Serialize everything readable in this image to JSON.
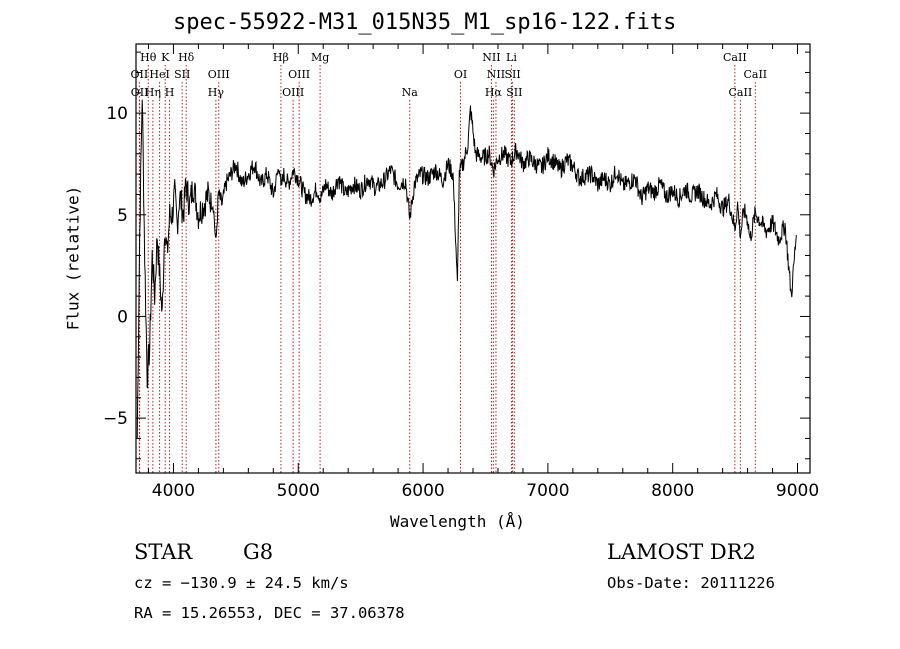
{
  "header": {
    "title": "spec-55922-M31_015N35_M1_sp16-122.fits"
  },
  "footer": {
    "class_label": "STAR",
    "subclass_label": "G8",
    "survey_label": "LAMOST DR2",
    "cz_text": "cz = −130.9 ± 24.5 km/s",
    "obs_date_text": "Obs-Date: 20111226",
    "coords_text": "RA =  15.26553, DEC =  37.06378"
  },
  "chart_data": {
    "type": "line",
    "title": "spec-55922-M31_015N35_M1_sp16-122.fits",
    "xlabel": "Wavelength (Å)",
    "ylabel": "Flux (relative)",
    "xlim": [
      3700,
      9100
    ],
    "ylim": [
      -7.7,
      13.4
    ],
    "xticks": [
      4000,
      5000,
      6000,
      7000,
      8000,
      9000
    ],
    "xtick_labels": [
      "4000",
      "5000",
      "6000",
      "7000",
      "8000",
      "9000"
    ],
    "yticks": [
      -5,
      0,
      5,
      10
    ],
    "ytick_labels": [
      "−5",
      "0",
      "5",
      "10"
    ],
    "grid": false,
    "line_colors": {
      "spectrum": "#000000",
      "lines": "#b22222"
    },
    "series": [
      {
        "x": [
          3710,
          3730,
          3750,
          3770,
          3790,
          3810,
          3830,
          3850,
          3870,
          3890,
          3910,
          3930,
          3950,
          3970,
          3990,
          4010,
          4030,
          4050,
          4080,
          4100,
          4130,
          4160,
          4200,
          4240,
          4280,
          4320,
          4340,
          4360,
          4390,
          4420,
          4460,
          4500,
          4550,
          4600,
          4650,
          4700,
          4750,
          4800,
          4850,
          4861,
          4880,
          4920,
          4960,
          5000,
          5050,
          5100,
          5150,
          5180,
          5220,
          5270,
          5320,
          5380,
          5440,
          5500,
          5560,
          5620,
          5680,
          5740,
          5800,
          5860,
          5893,
          5930,
          5980,
          6040,
          6100,
          6160,
          6200,
          6240,
          6260,
          6275,
          6290,
          6320,
          6360,
          6380,
          6420,
          6480,
          6530,
          6563,
          6600,
          6650,
          6700,
          6750,
          6800,
          6850,
          6900,
          6950,
          7000,
          7050,
          7100,
          7150,
          7200,
          7250,
          7300,
          7350,
          7400,
          7450,
          7500,
          7550,
          7600,
          7650,
          7700,
          7750,
          7800,
          7850,
          7900,
          7950,
          8000,
          8050,
          8100,
          8150,
          8200,
          8250,
          8300,
          8350,
          8400,
          8450,
          8498,
          8520,
          8542,
          8570,
          8600,
          8620,
          8662,
          8700,
          8750,
          8800,
          8850,
          8900,
          8950,
          8990
        ],
        "y": [
          -6,
          4,
          11,
          3,
          -3,
          -1.5,
          3,
          1,
          4,
          2,
          0,
          4.5,
          3,
          5,
          5,
          6,
          4.5,
          6,
          5,
          6.5,
          5.5,
          6.5,
          5,
          5.5,
          6,
          5.5,
          3.5,
          6,
          5.5,
          6.5,
          7,
          7.5,
          6.5,
          7,
          7.5,
          6.5,
          7,
          6,
          7.5,
          6.2,
          7,
          6.5,
          7.2,
          6.8,
          6,
          5.8,
          6.3,
          5.8,
          6.5,
          6,
          6.8,
          6,
          6.5,
          6.2,
          6.8,
          6.3,
          6.6,
          7.2,
          6.5,
          6.7,
          4.8,
          6.5,
          7,
          6.8,
          7.2,
          6.7,
          7.5,
          7,
          4,
          1.5,
          7,
          7.5,
          8.5,
          10.2,
          8,
          7.8,
          8,
          7.2,
          7.8,
          8,
          7.6,
          8.2,
          7.5,
          7.8,
          7.5,
          7.3,
          7.9,
          7.6,
          7.2,
          7.7,
          7.4,
          6.8,
          6.9,
          7,
          6.5,
          6.8,
          6.5,
          7.2,
          6.4,
          6.6,
          6.8,
          5.8,
          6.3,
          6.1,
          6.5,
          5.9,
          6.2,
          5.8,
          6.3,
          5.9,
          6.2,
          5.8,
          5.5,
          6,
          5.3,
          5.7,
          4.3,
          5.5,
          4,
          5.2,
          4.8,
          3.8,
          5.1,
          4.7,
          4.2,
          4.6,
          3.8,
          4.5,
          1,
          4
        ]
      }
    ],
    "line_markers": [
      {
        "name": "Hθ",
        "x": 3798,
        "row": 1
      },
      {
        "name": "OII",
        "x": 3727,
        "row": 2
      },
      {
        "name": "OII",
        "x": 3729,
        "row": 3
      },
      {
        "name": "Hη",
        "x": 3835,
        "row": 3
      },
      {
        "name": "K",
        "x": 3934,
        "row": 1
      },
      {
        "name": "HeI",
        "x": 3889,
        "row": 2
      },
      {
        "name": "SII",
        "x": 4070,
        "row": 2
      },
      {
        "name": "H",
        "x": 3969,
        "row": 3
      },
      {
        "name": "Hδ",
        "x": 4102,
        "row": 1
      },
      {
        "name": "OIII",
        "x": 4363,
        "row": 2
      },
      {
        "name": "Hγ",
        "x": 4340,
        "row": 3
      },
      {
        "name": "Hβ",
        "x": 4861,
        "row": 1
      },
      {
        "name": "OIII",
        "x": 5007,
        "row": 2
      },
      {
        "name": "OIII",
        "x": 4959,
        "row": 3
      },
      {
        "name": "Mg",
        "x": 5175,
        "row": 1
      },
      {
        "name": "Na",
        "x": 5893,
        "row": 3
      },
      {
        "name": "OI",
        "x": 6300,
        "row": 2
      },
      {
        "name": "NII",
        "x": 6548,
        "row": 1
      },
      {
        "name": "Li",
        "x": 6708,
        "row": 1
      },
      {
        "name": "NII",
        "x": 6584,
        "row": 2
      },
      {
        "name": "SII",
        "x": 6717,
        "row": 2
      },
      {
        "name": "Hα",
        "x": 6563,
        "row": 3
      },
      {
        "name": "SII",
        "x": 6731,
        "row": 3
      },
      {
        "name": "CaII",
        "x": 8498,
        "row": 1
      },
      {
        "name": "CaII",
        "x": 8662,
        "row": 2
      },
      {
        "name": "CaII",
        "x": 8542,
        "row": 3
      }
    ]
  }
}
